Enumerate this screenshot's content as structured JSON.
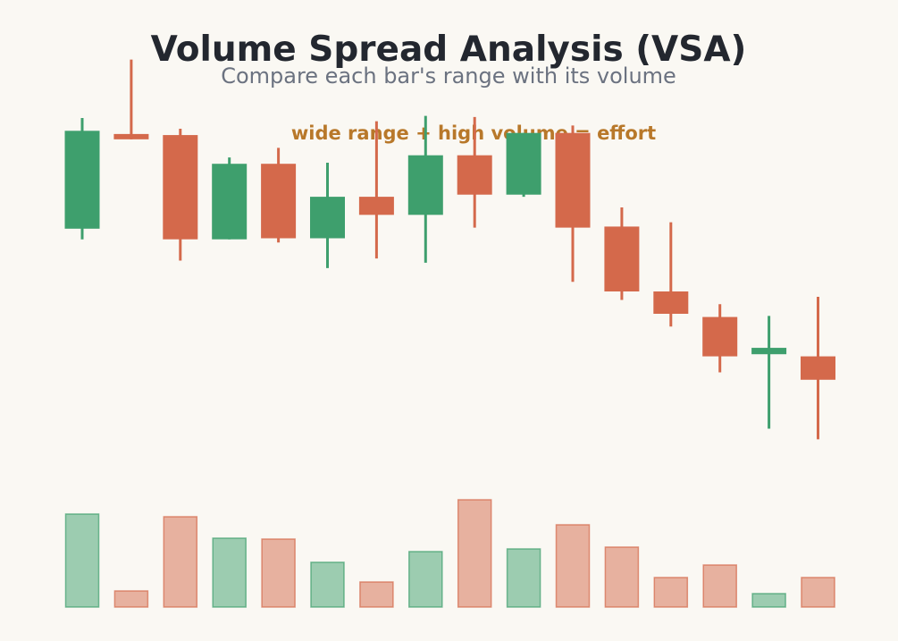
{
  "header": {
    "title": "Volume Spread Analysis (VSA)",
    "subtitle": "Compare each bar's range with its volume"
  },
  "annotation": "wide range + high volume = effort",
  "colors": {
    "background": "#faf8f3",
    "up": "#3e9f6d",
    "down": "#d4694b",
    "title": "#23272f",
    "subtitle": "#6b7280",
    "annotation": "#b8782a"
  },
  "chart_data": {
    "type": "candlestick",
    "title": "Volume Spread Analysis (VSA)",
    "subtitle": "Compare each bar's range with its volume",
    "annotations": [
      "wide range + high volume = effort"
    ],
    "axes_visible": false,
    "grid": false,
    "candles": [
      {
        "open": 42.0,
        "high": 52.4,
        "low": 41.0,
        "close": 51.2,
        "volume": 104
      },
      {
        "open": 50.9,
        "high": 57.9,
        "low": 50.4,
        "close": 50.4,
        "volume": 18
      },
      {
        "open": 50.8,
        "high": 51.4,
        "low": 39.0,
        "close": 41.0,
        "volume": 101
      },
      {
        "open": 41.0,
        "high": 48.7,
        "low": 41.0,
        "close": 48.1,
        "volume": 77
      },
      {
        "open": 48.1,
        "high": 49.6,
        "low": 40.7,
        "close": 41.1,
        "volume": 76
      },
      {
        "open": 41.1,
        "high": 48.2,
        "low": 38.3,
        "close": 45.0,
        "volume": 50
      },
      {
        "open": 45.0,
        "high": 52.1,
        "low": 39.2,
        "close": 43.3,
        "volume": 28
      },
      {
        "open": 43.3,
        "high": 52.6,
        "low": 38.8,
        "close": 48.9,
        "volume": 62
      },
      {
        "open": 48.9,
        "high": 52.5,
        "low": 42.1,
        "close": 45.2,
        "volume": 120
      },
      {
        "open": 45.2,
        "high": 51.0,
        "low": 45.0,
        "close": 51.0,
        "volume": 65
      },
      {
        "open": 51.0,
        "high": 51.7,
        "low": 37.0,
        "close": 42.1,
        "volume": 92
      },
      {
        "open": 42.2,
        "high": 44.0,
        "low": 35.3,
        "close": 36.1,
        "volume": 67
      },
      {
        "open": 36.1,
        "high": 42.6,
        "low": 32.8,
        "close": 34.0,
        "volume": 33
      },
      {
        "open": 33.7,
        "high": 34.9,
        "low": 28.5,
        "close": 30.0,
        "volume": 47
      },
      {
        "open": 30.2,
        "high": 33.8,
        "low": 23.2,
        "close": 30.8,
        "volume": 15
      },
      {
        "open": 30.0,
        "high": 35.6,
        "low": 22.2,
        "close": 27.8,
        "volume": 33
      }
    ]
  }
}
